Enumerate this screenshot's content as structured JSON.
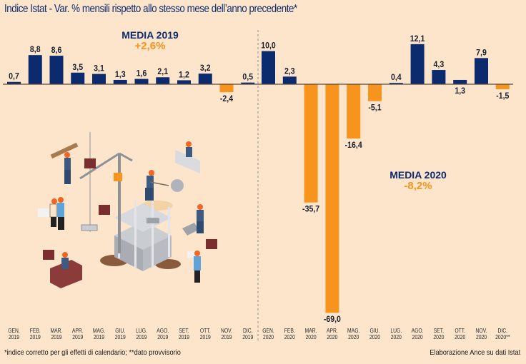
{
  "header": {
    "title": "Indice Istat - Var. % mensili rispetto allo stesso mese dell’anno precedente*"
  },
  "media_2019": {
    "label": "MEDIA 2019",
    "value": "+2,6%"
  },
  "media_2020": {
    "label": "MEDIA 2020",
    "value": "-8,2%"
  },
  "footer": {
    "footnote": "*indice corretto per gli effetti di calendario; **dato provvisorio",
    "source": "Elaborazione Ance su dati Istat"
  },
  "colors": {
    "positive": "#0c2a6e",
    "negative": "#f7941d",
    "background": "#fde5cb"
  },
  "illustration": {
    "subject": "isometric construction site with crane, building frame and workers"
  },
  "chart_data": {
    "type": "bar",
    "title": "Indice Istat - Var. % mensili rispetto allo stesso mese dell’anno precedente*",
    "xlabel": "",
    "ylabel": "Var. %",
    "ylim": [
      -70,
      13
    ],
    "grid": false,
    "categories": [
      [
        "GEN.",
        "2019"
      ],
      [
        "FEB.",
        "2019"
      ],
      [
        "MAR.",
        "2019"
      ],
      [
        "APR.",
        "2019"
      ],
      [
        "MAG.",
        "2019"
      ],
      [
        "GIU.",
        "2019"
      ],
      [
        "LUG.",
        "2019"
      ],
      [
        "AGO.",
        "2019"
      ],
      [
        "SET.",
        "2019"
      ],
      [
        "OTT.",
        "2019"
      ],
      [
        "NOV.",
        "2019"
      ],
      [
        "DIC.",
        "2019"
      ],
      [
        "GEN.",
        "2020"
      ],
      [
        "FEB.",
        "2020"
      ],
      [
        "MAR.",
        "2020"
      ],
      [
        "APR.",
        "2020"
      ],
      [
        "MAG.",
        "2020"
      ],
      [
        "GIU.",
        "2020"
      ],
      [
        "LUG.",
        "2020"
      ],
      [
        "AGO.",
        "2020"
      ],
      [
        "SET.",
        "2020"
      ],
      [
        "OTT.",
        "2020"
      ],
      [
        "NOV.",
        "2020"
      ],
      [
        "DIC.",
        "2020**"
      ]
    ],
    "values": [
      0.7,
      8.8,
      8.6,
      3.5,
      3.1,
      1.3,
      1.6,
      2.1,
      1.2,
      3.2,
      -2.4,
      0.5,
      10.0,
      2.3,
      -35.7,
      -69.0,
      -16.4,
      -5.1,
      0.4,
      12.1,
      4.3,
      1.3,
      7.9,
      -1.5
    ],
    "labels": [
      "0,7",
      "8,8",
      "8,6",
      "3,5",
      "3,1",
      "1,3",
      "1,6",
      "2,1",
      "1,2",
      "3,2",
      "-2,4",
      "0,5",
      "10,0",
      "2,3",
      "-35,7",
      "-69,0",
      "-16,4",
      "-5,1",
      "0,4",
      "12,1",
      "4,3",
      "1,3",
      "7,9",
      "-1,5"
    ],
    "label_below": [
      false,
      false,
      false,
      false,
      false,
      false,
      false,
      false,
      false,
      false,
      true,
      false,
      false,
      false,
      true,
      true,
      true,
      true,
      false,
      false,
      false,
      true,
      false,
      true
    ],
    "annotations": [
      "MEDIA 2019 +2,6%",
      "MEDIA 2020 -8,2%"
    ],
    "legend": "none",
    "separator_between": [
      "DIC. 2019",
      "GEN. 2020"
    ]
  }
}
